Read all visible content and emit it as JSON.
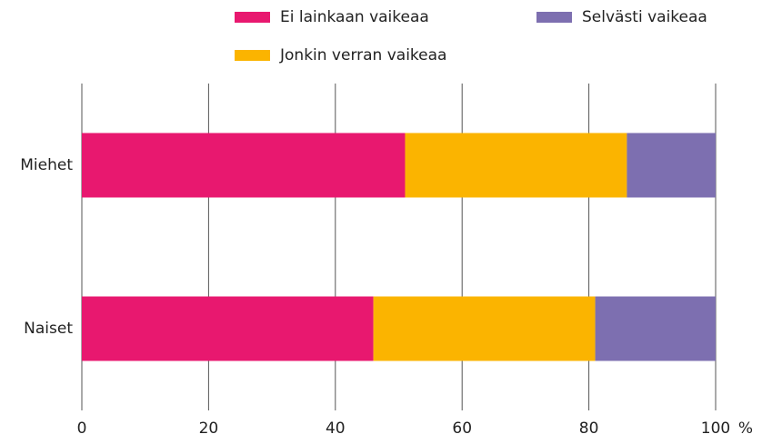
{
  "chart_data": {
    "type": "stacked-barh",
    "categories": [
      "Miehet",
      "Naiset"
    ],
    "series": [
      {
        "name": "Ei lainkaan vaikeaa",
        "color": "#e8186f",
        "values": [
          51,
          46
        ]
      },
      {
        "name": "Jonkin verran vaikeaa",
        "color": "#fbb400",
        "values": [
          35,
          35
        ]
      },
      {
        "name": "Selvästi vaikeaa",
        "color": "#7d6fb0",
        "values": [
          14,
          19
        ]
      }
    ],
    "xlabel": "%",
    "xlim": [
      0,
      100
    ],
    "xticks": [
      0,
      20,
      40,
      60,
      80,
      100
    ],
    "grid": true
  }
}
